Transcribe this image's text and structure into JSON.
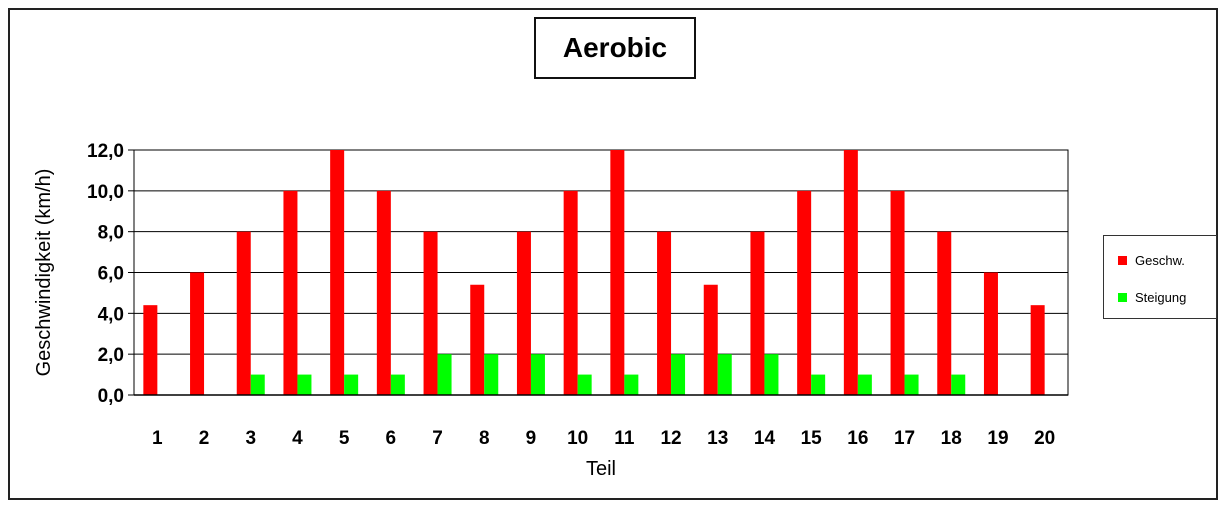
{
  "chart_data": {
    "type": "bar",
    "title": "Aerobic",
    "xlabel": "Teil",
    "ylabel": "Geschwindigkeit  (km/h)",
    "categories": [
      "1",
      "2",
      "3",
      "4",
      "5",
      "6",
      "7",
      "8",
      "9",
      "10",
      "11",
      "12",
      "13",
      "14",
      "15",
      "16",
      "17",
      "18",
      "19",
      "20"
    ],
    "series": [
      {
        "name": "Geschw.",
        "color": "#ff0000",
        "values": [
          4.4,
          6.0,
          8.0,
          10.0,
          12.0,
          10.0,
          8.0,
          5.4,
          8.0,
          10.0,
          12.0,
          8.0,
          5.4,
          8.0,
          10.0,
          12.0,
          10.0,
          8.0,
          6.0,
          4.4
        ]
      },
      {
        "name": "Steigung",
        "color": "#00ff00",
        "values": [
          0,
          0,
          1.0,
          1.0,
          1.0,
          1.0,
          2.0,
          2.0,
          2.0,
          1.0,
          1.0,
          2.0,
          2.0,
          2.0,
          1.0,
          1.0,
          1.0,
          1.0,
          0,
          0
        ]
      }
    ],
    "yticks": [
      "0,0",
      "2,0",
      "4,0",
      "6,0",
      "8,0",
      "10,0",
      "12,0"
    ],
    "ylim": [
      0,
      12
    ],
    "grid": true,
    "legend_position": "right"
  }
}
